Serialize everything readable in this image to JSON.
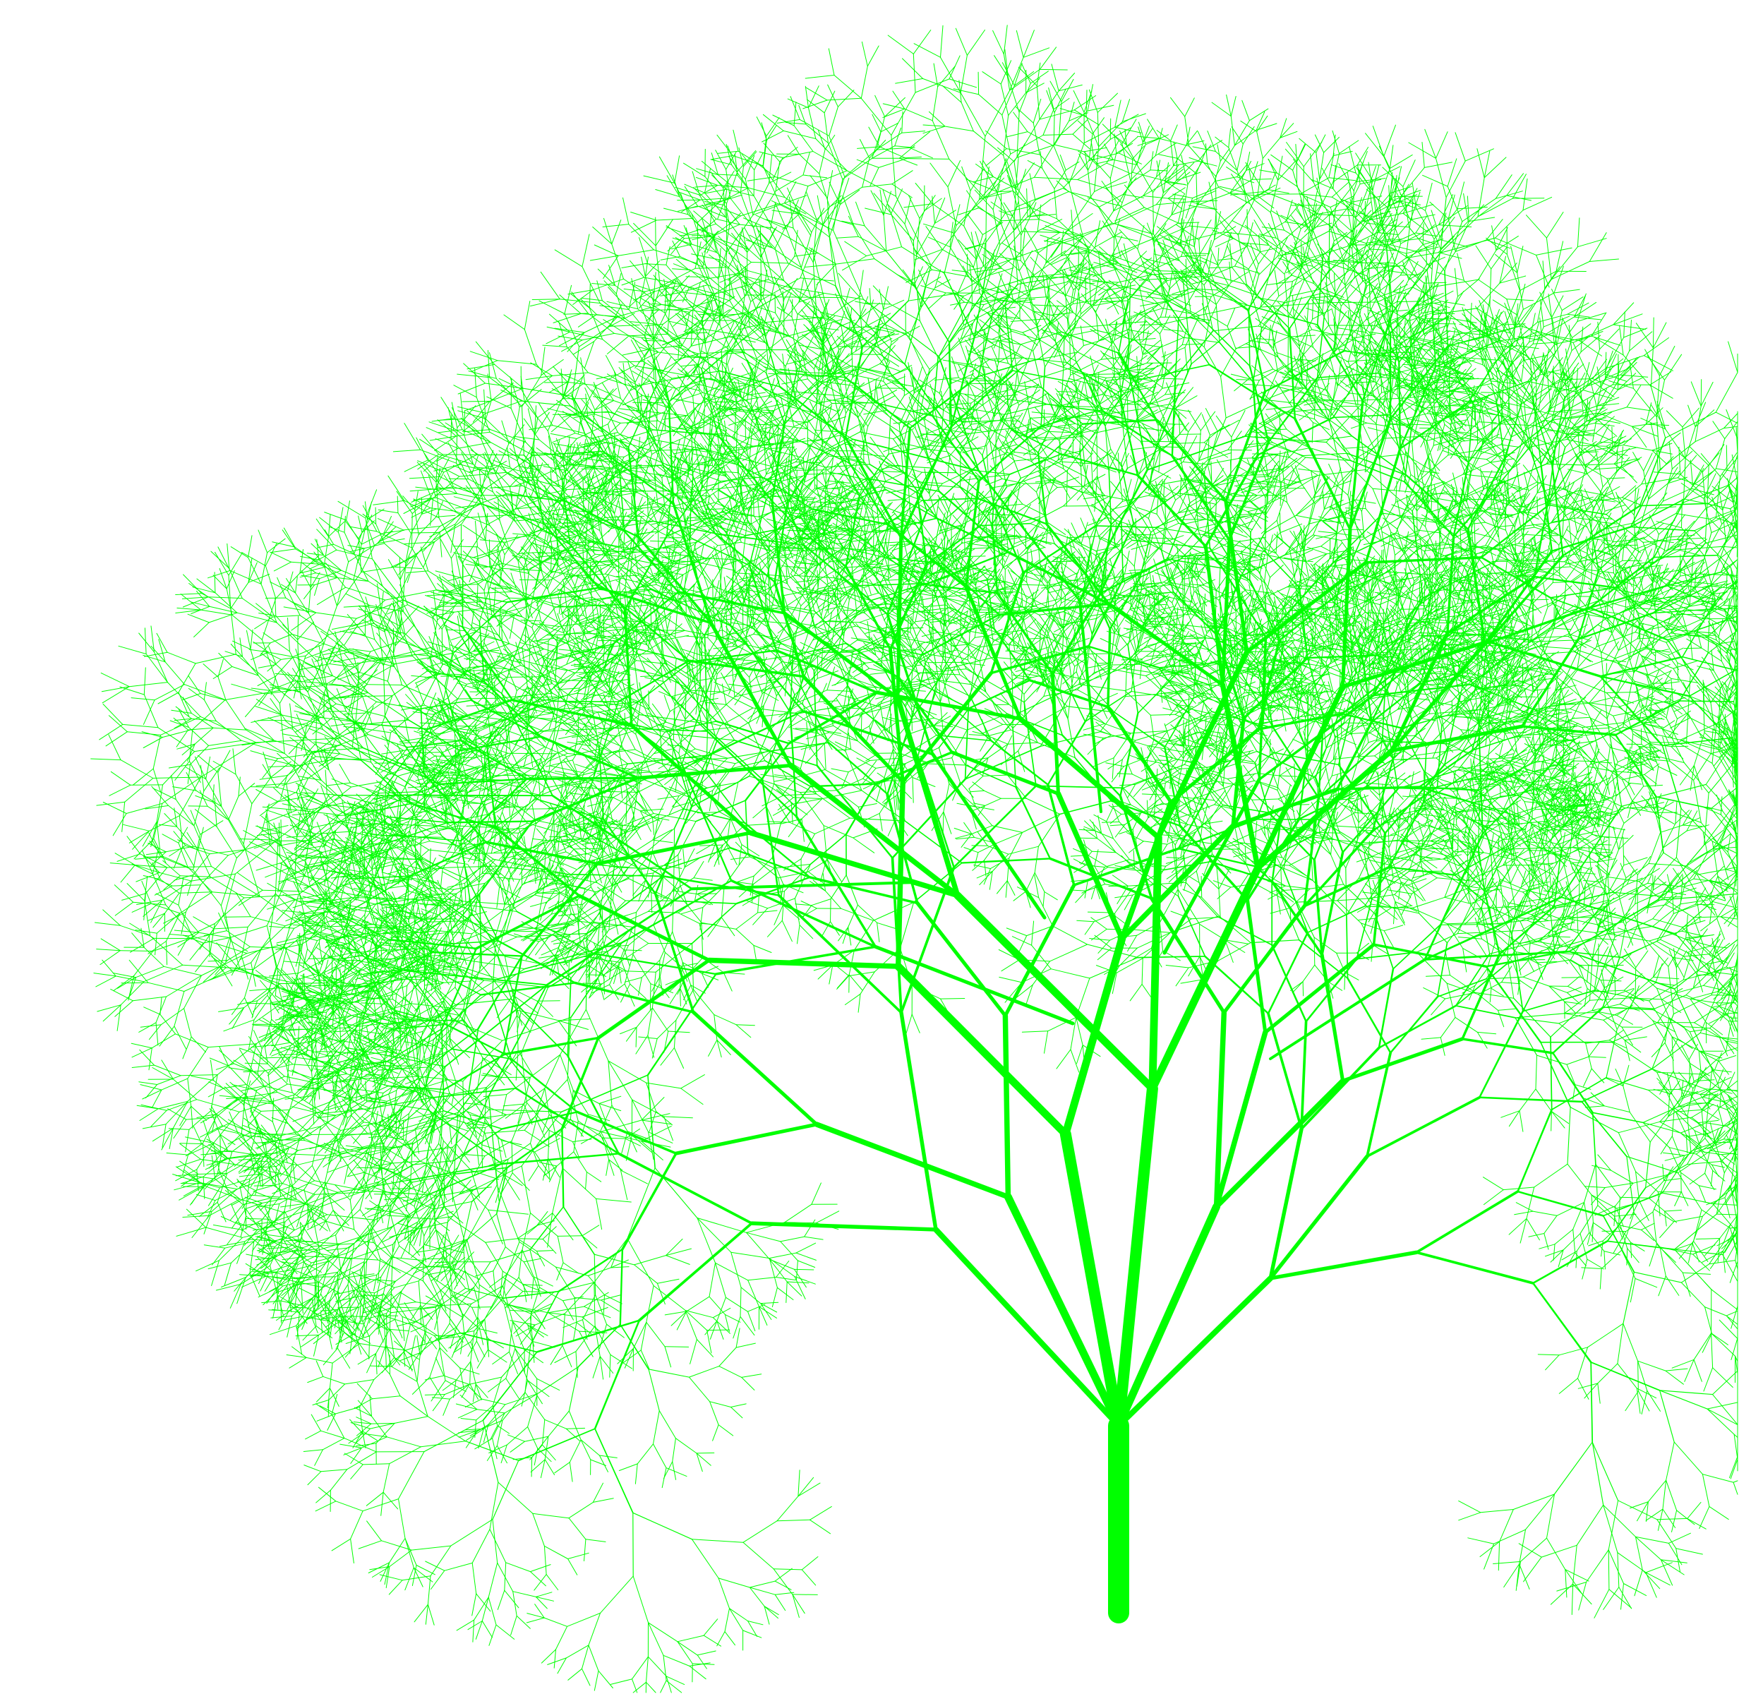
{
  "scene": {
    "subject": "fractal-tree",
    "background_color": "#ffffff",
    "branch_color": "#00ff00",
    "trunk_color": "#00ff00"
  }
}
